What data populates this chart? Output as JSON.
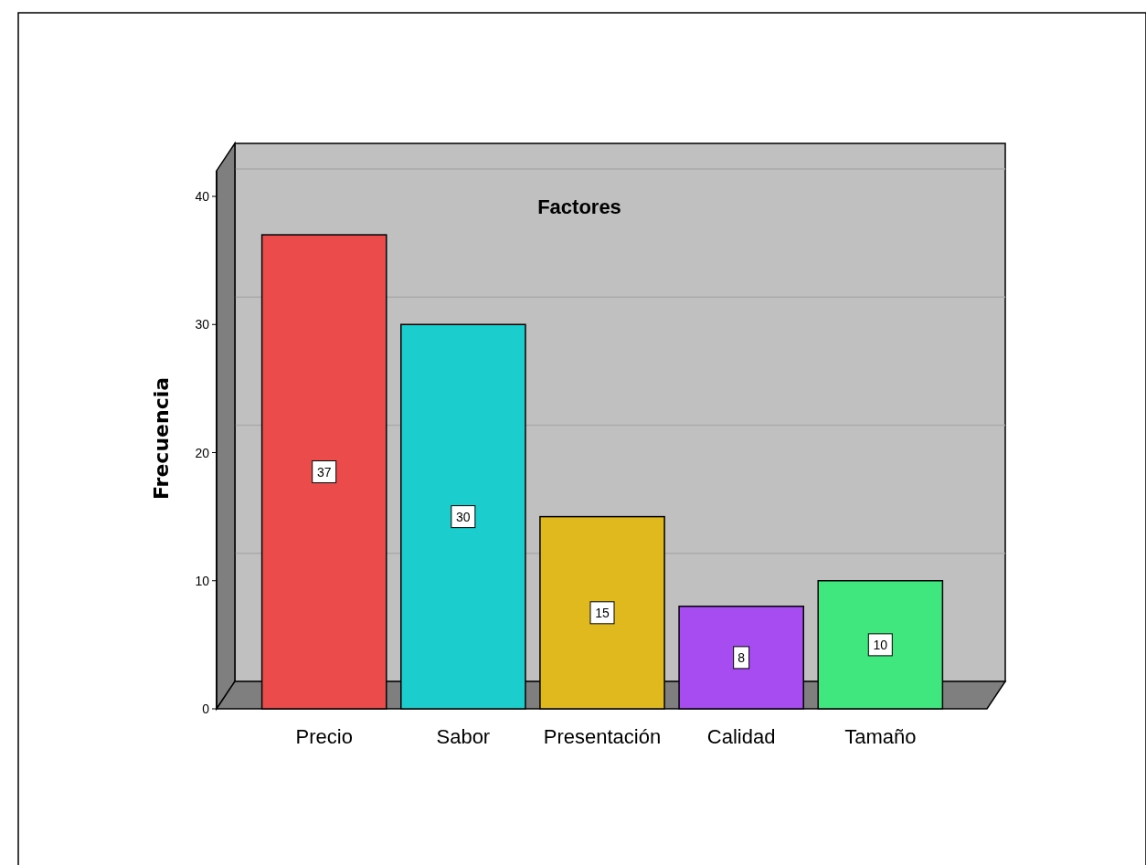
{
  "chart_data": {
    "type": "bar",
    "title": "Factores",
    "ylabel": "Frecuencia",
    "categories": [
      "Precio",
      "Sabor",
      "Presentación",
      "Calidad",
      "Tamaño"
    ],
    "values": [
      37,
      30,
      15,
      8,
      10
    ],
    "colors": [
      "#ec4b4b",
      "#1ccdcd",
      "#e0b91f",
      "#a64cf0",
      "#40e67e"
    ],
    "ylim": [
      0,
      42
    ],
    "yticks": [
      0,
      10,
      20,
      30,
      40
    ],
    "grid": "y",
    "data_labels": true
  }
}
